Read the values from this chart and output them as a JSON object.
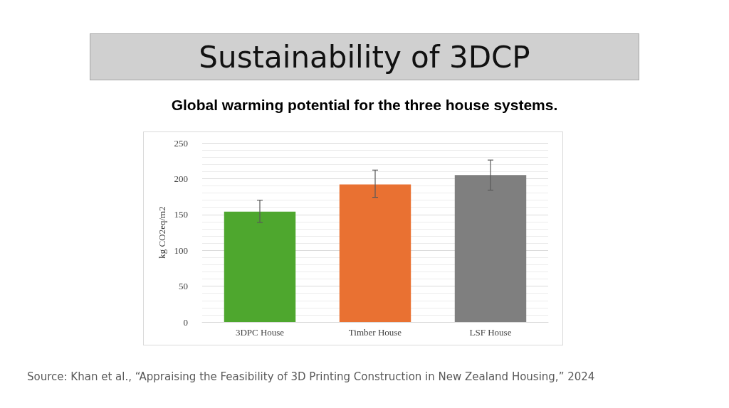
{
  "chart_data": {
    "type": "bar",
    "title": "Sustainability of 3DCP",
    "subtitle": "Global warming potential for the three house systems.",
    "ylabel": "kg CO2eq/m2",
    "categories": [
      "3DPC House",
      "Timber House",
      "LSF House"
    ],
    "values": [
      154,
      192,
      205
    ],
    "colors": [
      "#4ea72e",
      "#e97132",
      "#7f7f7f"
    ],
    "errors": [
      [
        139,
        170
      ],
      [
        174,
        212
      ],
      [
        184,
        226
      ]
    ],
    "ylim": [
      0,
      250
    ],
    "yticks": [
      0,
      50,
      100,
      150,
      200,
      250
    ],
    "grid": true,
    "annotations": [
      "Source: Khan et al., “Appraising the Feasibility of 3D Printing Construction in New Zealand Housing,” 2024"
    ]
  }
}
